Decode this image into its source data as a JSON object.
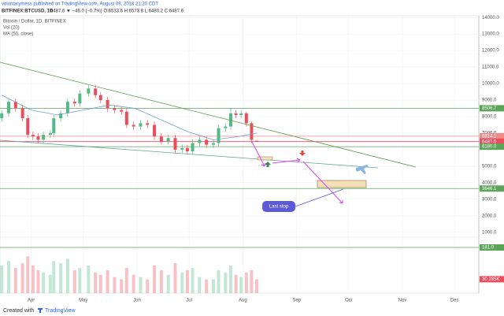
{
  "header": {
    "publish_line": "voluntarymess published on TradingView.com, August 09, 2018 21:20 CDT",
    "symbol": "BITFINEX:BTCUSD, 1D",
    "quote": "6487.6 ▼ −46.0 (−0.7%) O:6533.6 H:6573.8 L:6480.2 C:6487.6"
  },
  "footer": {
    "created": "Created with",
    "brand": "TradingView"
  },
  "chart_data": {
    "type": "candlestick",
    "legend": [
      "Bitcoin / Dollar, 1D, BITFINEX",
      "Vol (20)",
      "MA (50, close)"
    ],
    "x": [
      -17,
      -13,
      -9,
      -5,
      -2,
      1,
      4,
      7,
      11,
      13,
      17,
      21,
      25,
      28,
      33,
      37,
      40,
      44,
      48,
      52,
      55,
      59,
      63,
      67,
      71,
      75,
      79,
      83,
      87,
      90,
      93,
      97,
      101,
      105,
      108,
      112,
      115,
      118,
      121,
      124,
      127,
      130
    ],
    "open": [
      7900,
      8200,
      8900,
      8500,
      7900,
      6900,
      6800,
      6600,
      6900,
      7000,
      7900,
      8200,
      8900,
      8800,
      9400,
      9700,
      9300,
      9000,
      8500,
      8400,
      8300,
      7500,
      7400,
      7600,
      7500,
      6800,
      6500,
      6700,
      6000,
      6100,
      5900,
      6400,
      6600,
      6300,
      6400,
      7300,
      7400,
      8200,
      8100,
      8200,
      7600,
      6533.6
    ],
    "high": [
      8400,
      9100,
      9100,
      8700,
      8100,
      7100,
      7000,
      7100,
      7200,
      8100,
      8400,
      9100,
      9100,
      9600,
      9900,
      9900,
      9500,
      9200,
      8700,
      8600,
      8500,
      7700,
      7800,
      7800,
      7700,
      7000,
      6900,
      6900,
      6300,
      6300,
      6600,
      6800,
      6800,
      6600,
      7500,
      7600,
      8500,
      8400,
      8400,
      8300,
      7700,
      6573.8
    ],
    "low": [
      7700,
      8000,
      8300,
      7700,
      6700,
      6600,
      6400,
      6400,
      6700,
      6800,
      7700,
      8000,
      8600,
      8600,
      9200,
      9100,
      8800,
      8300,
      8200,
      8100,
      7300,
      7200,
      7200,
      7300,
      6600,
      6300,
      6300,
      5800,
      5800,
      5700,
      5700,
      6200,
      6100,
      6100,
      6200,
      7100,
      7200,
      7900,
      7900,
      7400,
      6400,
      6480.2
    ],
    "close": [
      8200,
      8900,
      8500,
      7900,
      6900,
      6800,
      6600,
      6900,
      7000,
      7900,
      8200,
      8900,
      8800,
      9400,
      9700,
      9300,
      9000,
      8500,
      8400,
      8300,
      7500,
      7400,
      7600,
      7500,
      6800,
      6500,
      6700,
      6000,
      6100,
      5900,
      6400,
      6600,
      6300,
      6400,
      7300,
      7400,
      8200,
      8100,
      8200,
      7600,
      6600,
      6487.6
    ],
    "up_color": "#53b987",
    "down_color": "#eb4d5c",
    "ylim": [
      750,
      14200
    ],
    "yticks": [
      {
        "value": 14000,
        "label": "14000.0"
      },
      {
        "value": 13000,
        "label": "13000.0"
      },
      {
        "value": 12000,
        "label": "12000.0"
      },
      {
        "value": 11000,
        "label": "11000.0"
      },
      {
        "value": 10000,
        "label": "10000.0"
      },
      {
        "value": 9000,
        "label": "9000.0"
      },
      {
        "value": 8000,
        "label": "8000.0"
      },
      {
        "value": 7000,
        "label": "7000.0"
      },
      {
        "value": 5000,
        "label": "5000.0"
      },
      {
        "value": 4000,
        "label": "4000.0"
      },
      {
        "value": 3000,
        "label": "3000.0"
      },
      {
        "value": 2000,
        "label": "2000.0"
      },
      {
        "value": 1000,
        "label": "1000.0"
      }
    ],
    "xlim": [
      -18,
      258
    ],
    "xticks": [
      {
        "value": 0,
        "label": "Apr"
      },
      {
        "value": 30,
        "label": "May"
      },
      {
        "value": 61,
        "label": "Jun"
      },
      {
        "value": 91,
        "label": "Jul"
      },
      {
        "value": 122,
        "label": "Aug"
      },
      {
        "value": 153,
        "label": "Sep"
      },
      {
        "value": 183,
        "label": "Oct"
      },
      {
        "value": 214,
        "label": "Nov"
      },
      {
        "value": 244,
        "label": "Dec"
      }
    ],
    "grid": true,
    "ma": {
      "color": "#6b9fc9",
      "x": [
        -17,
        0,
        15,
        30,
        45,
        60,
        75,
        90,
        105,
        120,
        130
      ],
      "values": [
        9300,
        8400,
        8100,
        8400,
        8700,
        8500,
        7800,
        7100,
        6600,
        6800,
        7000
      ]
    },
    "levels": [
      {
        "value": 8506.7,
        "color": "#5ca45a"
      },
      {
        "value": 6814.1,
        "color": "#f08a8a"
      },
      {
        "value": 6487.6,
        "color": "#eb4d5c"
      },
      {
        "value": 6180,
        "label": "6180.0",
        "color": "#5ca45a"
      },
      {
        "value": 3646.1,
        "color": "#5ca45a"
      }
    ],
    "volume": {
      "ylim": [
        0,
        120000
      ],
      "values": [
        60000,
        70000,
        55000,
        65000,
        80000,
        60000,
        50000,
        45000,
        40000,
        70000,
        65000,
        75000,
        50000,
        55000,
        60000,
        45000,
        40000,
        50000,
        35000,
        30000,
        55000,
        40000,
        35000,
        30000,
        60000,
        50000,
        40000,
        65000,
        45000,
        50000,
        55000,
        35000,
        30000,
        30000,
        50000,
        45000,
        60000,
        40000,
        35000,
        45000,
        50000,
        30285
      ],
      "value_label": "30 285K",
      "line_label": "181.0"
    },
    "annotation": "Last stop"
  }
}
